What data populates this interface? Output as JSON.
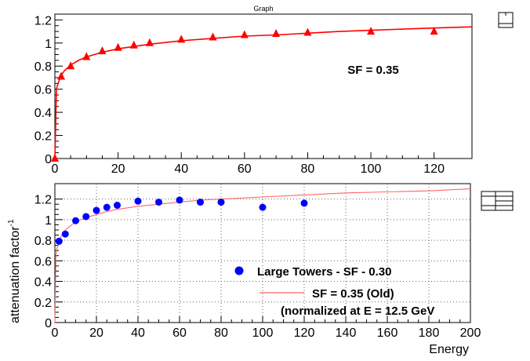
{
  "window": {
    "title": "Graph",
    "icons": [
      "pad-toggle-icon",
      "legend-toggle-icon"
    ]
  },
  "colors": {
    "fit": "#ff0000",
    "triangles": "#ff0000",
    "towers": "#0000ff",
    "old_curve": "#ff6666",
    "grid": "#888888",
    "frame": "#000000"
  },
  "chart_data": [
    {
      "type": "scatter",
      "title": "Graph",
      "xlabel": "",
      "ylabel": "",
      "xlim": [
        0,
        132
      ],
      "ylim": [
        0,
        1.25
      ],
      "x_ticks": [
        0,
        20,
        40,
        60,
        80,
        100,
        120
      ],
      "y_ticks": [
        0,
        0.2,
        0.4,
        0.6,
        0.8,
        1,
        1.2
      ],
      "x_tick_labels": [
        "0",
        "20",
        "40",
        "60",
        "80",
        "100",
        "120"
      ],
      "y_tick_labels": [
        "0",
        "0.2",
        "0.4",
        "0.6",
        "0.8",
        "1",
        "1.2"
      ],
      "grid": false,
      "annotation": "SF = 0.35",
      "series": [
        {
          "marker": "triangle",
          "color": "#ff0000",
          "x": [
            0,
            2,
            5,
            10,
            15,
            20,
            25,
            30,
            40,
            50,
            60,
            70,
            80,
            100,
            120
          ],
          "y": [
            0.0,
            0.71,
            0.8,
            0.88,
            0.93,
            0.96,
            0.98,
            1.0,
            1.03,
            1.05,
            1.07,
            1.08,
            1.09,
            1.1,
            1.1
          ]
        },
        {
          "line": true,
          "color": "#ff0000",
          "x": [
            0,
            0.5,
            1,
            2,
            3,
            5,
            7.5,
            10,
            12.5,
            15,
            20,
            25,
            30,
            40,
            50,
            60,
            70,
            80,
            90,
            100,
            110,
            120,
            132
          ],
          "y": [
            0.0,
            0.6,
            0.65,
            0.72,
            0.76,
            0.81,
            0.85,
            0.88,
            0.9,
            0.92,
            0.95,
            0.97,
            0.99,
            1.02,
            1.04,
            1.06,
            1.07,
            1.085,
            1.1,
            1.11,
            1.12,
            1.13,
            1.14
          ]
        }
      ]
    },
    {
      "type": "scatter",
      "title": "",
      "xlabel": "Energy",
      "ylabel": "attenuation factor",
      "ylabel_superscript": "-1",
      "xlim": [
        0,
        200
      ],
      "ylim": [
        0,
        1.35
      ],
      "x_ticks": [
        0,
        20,
        40,
        60,
        80,
        100,
        120,
        140,
        160,
        180,
        200
      ],
      "y_ticks": [
        0,
        0.2,
        0.4,
        0.6,
        0.8,
        1,
        1.2
      ],
      "x_tick_labels": [
        "0",
        "20",
        "40",
        "60",
        "80",
        "100",
        "120",
        "140",
        "160",
        "180",
        "200"
      ],
      "y_tick_labels": [
        "0",
        "0.2",
        "0.4",
        "0.6",
        "0.8",
        "1",
        "1.2"
      ],
      "grid": true,
      "legend": {
        "placement": "bottom-right",
        "entries": [
          "Large Towers - SF - 0.30",
          "SF = 0.35 (Old)",
          "(normalized at E = 12.5 GeV"
        ]
      },
      "series": [
        {
          "name": "Large Towers - SF - 0.30",
          "marker": "circle",
          "color": "#0000ff",
          "x": [
            2,
            5,
            10,
            15,
            20,
            25,
            30,
            40,
            50,
            60,
            70,
            80,
            100,
            120
          ],
          "y": [
            0.79,
            0.86,
            0.99,
            1.03,
            1.09,
            1.12,
            1.14,
            1.18,
            1.17,
            1.19,
            1.17,
            1.17,
            1.12,
            1.16
          ]
        },
        {
          "name": "SF = 0.35 (Old)",
          "line": true,
          "color": "#ff6666",
          "x": [
            0,
            0.5,
            1,
            2,
            3,
            5,
            7.5,
            10,
            12.5,
            15,
            20,
            25,
            30,
            40,
            50,
            60,
            70,
            80,
            100,
            120,
            140,
            160,
            180,
            200
          ],
          "y": [
            0.0,
            0.66,
            0.72,
            0.79,
            0.84,
            0.9,
            0.94,
            0.98,
            1.0,
            1.02,
            1.05,
            1.08,
            1.1,
            1.13,
            1.15,
            1.17,
            1.19,
            1.2,
            1.22,
            1.24,
            1.26,
            1.27,
            1.28,
            1.3
          ]
        }
      ]
    }
  ]
}
